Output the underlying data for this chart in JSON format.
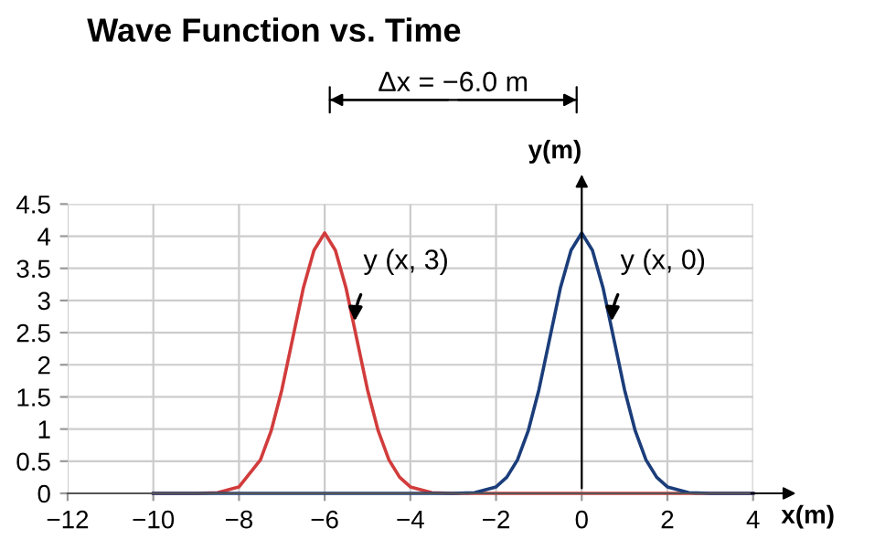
{
  "chart_data": {
    "type": "line",
    "title": "Wave Function vs. Time",
    "xlabel": "x(m)",
    "ylabel": "y(m)",
    "x": [
      -10,
      -9,
      -8.5,
      -8,
      -7.5,
      -7.25,
      -7,
      -6.75,
      -6.5,
      -6.25,
      -6,
      -5.75,
      -5.5,
      -5.25,
      -5,
      -4.75,
      -4.5,
      -4.25,
      -4,
      -3.5,
      -3,
      -2.5,
      -2,
      -1.75,
      -1.5,
      -1.25,
      -1,
      -0.75,
      -0.5,
      -0.25,
      0,
      0.25,
      0.5,
      0.75,
      1,
      1.25,
      1.5,
      1.75,
      2,
      2.5,
      3,
      4
    ],
    "series": [
      {
        "color": "#d23c3c",
        "values": [
          0,
          0,
          0.01,
          0.1,
          0.52,
          0.97,
          1.61,
          2.4,
          3.19,
          3.78,
          4.05,
          3.78,
          3.19,
          2.4,
          1.61,
          0.97,
          0.52,
          0.25,
          0.1,
          0.01,
          0,
          0,
          0,
          0,
          0,
          0,
          0,
          0,
          0,
          0,
          0,
          0,
          0,
          0,
          0,
          0,
          0,
          0,
          0,
          0,
          0,
          0
        ]
      },
      {
        "color": "#1b3d7a",
        "values": [
          0,
          0,
          0,
          0,
          0,
          0,
          0,
          0,
          0,
          0,
          0,
          0,
          0,
          0,
          0,
          0,
          0,
          0,
          0,
          0,
          0,
          0.01,
          0.1,
          0.25,
          0.52,
          0.97,
          1.61,
          2.4,
          3.19,
          3.78,
          4.05,
          3.78,
          3.19,
          2.4,
          1.61,
          0.97,
          0.52,
          0.25,
          0.1,
          0.01,
          0,
          0
        ]
      }
    ],
    "annotations": [
      "Δx = −6.0 m",
      {
        "text": "y (x, 3)",
        "x": -5.3,
        "y": 2.6
      },
      {
        "text": "y (x, 0)",
        "x": 0.7,
        "y": 2.6
      }
    ],
    "xlim": [
      -12,
      4
    ],
    "xticks": [
      -12,
      -10,
      -8,
      -6,
      -4,
      -2,
      0,
      2,
      4
    ],
    "ylim": [
      0,
      4.5
    ],
    "yticks": [
      0,
      0.5,
      1,
      1.5,
      2,
      2.5,
      3,
      3.5,
      4,
      4.5
    ],
    "grid": true,
    "marker": "none",
    "line_style": "solid",
    "legend": false
  }
}
